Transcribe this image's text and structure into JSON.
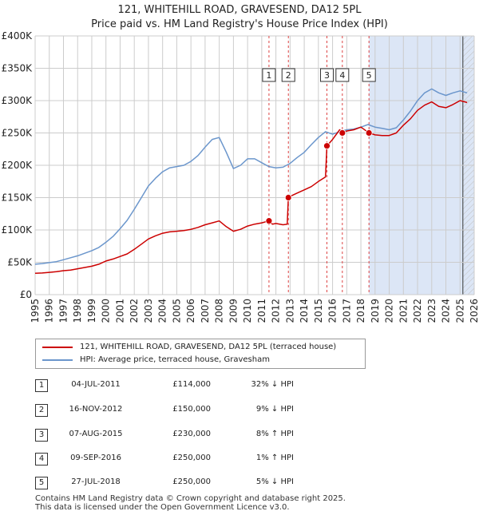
{
  "title_line1": "121, WHITEHILL ROAD, GRAVESEND, DA12 5PL",
  "title_line2": "Price paid vs. HM Land Registry's House Price Index (HPI)",
  "colors": {
    "property_line": "#cc0000",
    "hpi_line": "#6b96cc",
    "highlight_band": "#dce6f6",
    "hatch": "#c0c0c0",
    "grid": "#cccccc",
    "marker_line": "#dd4444"
  },
  "chart_data": {
    "type": "line",
    "title": "Price paid vs. HM Land Registry's House Price Index (HPI)",
    "xlabel": "",
    "ylabel": "",
    "xlim": [
      1995.0,
      2026.0
    ],
    "ylim": [
      0,
      400000
    ],
    "y_ticks": [
      0,
      50000,
      100000,
      150000,
      200000,
      250000,
      300000,
      350000,
      400000
    ],
    "y_tick_labels": [
      "£0",
      "£50K",
      "£100K",
      "£150K",
      "£200K",
      "£250K",
      "£300K",
      "£350K",
      "£400K"
    ],
    "x_ticks": [
      1995,
      1996,
      1997,
      1998,
      1999,
      2000,
      2001,
      2002,
      2003,
      2004,
      2005,
      2006,
      2007,
      2008,
      2009,
      2010,
      2011,
      2012,
      2013,
      2014,
      2015,
      2016,
      2017,
      2018,
      2019,
      2020,
      2021,
      2022,
      2023,
      2024,
      2025,
      2026
    ],
    "highlight_period": [
      2018.57,
      2026.0
    ],
    "forecast_start": 2025.2,
    "series": [
      {
        "name": "121, WHITEHILL ROAD, GRAVESEND, DA12 5PL (terraced house)",
        "color": "#cc0000",
        "x": [
          1995.0,
          1995.5,
          1996.0,
          1996.5,
          1997.0,
          1997.5,
          1998.0,
          1998.5,
          1999.0,
          1999.5,
          2000.0,
          2000.5,
          2001.0,
          2001.5,
          2002.0,
          2002.5,
          2003.0,
          2003.5,
          2004.0,
          2004.5,
          2005.0,
          2005.5,
          2006.0,
          2006.5,
          2007.0,
          2007.5,
          2008.0,
          2008.5,
          2009.0,
          2009.5,
          2010.0,
          2010.5,
          2011.0,
          2011.5,
          2011.75,
          2012.0,
          2012.5,
          2012.8,
          2012.88,
          2013.0,
          2013.5,
          2014.0,
          2014.5,
          2015.0,
          2015.5,
          2015.6,
          2016.0,
          2016.5,
          2016.7,
          2017.0,
          2017.5,
          2018.0,
          2018.57,
          2019.0,
          2019.5,
          2020.0,
          2020.5,
          2021.0,
          2021.5,
          2022.0,
          2022.5,
          2023.0,
          2023.5,
          2024.0,
          2024.5,
          2025.0,
          2025.5
        ],
        "values": [
          33000,
          33500,
          34500,
          35500,
          37000,
          38000,
          40000,
          42000,
          44000,
          47000,
          52000,
          55000,
          59000,
          63000,
          70000,
          78000,
          86000,
          91000,
          95000,
          97000,
          98000,
          99000,
          101000,
          104000,
          108000,
          111000,
          114000,
          105000,
          98000,
          101000,
          106000,
          109000,
          111000,
          114000,
          109000,
          110000,
          108000,
          109000,
          150000,
          152000,
          157000,
          162000,
          167000,
          175000,
          182000,
          230000,
          240000,
          255000,
          250000,
          253000,
          255000,
          259000,
          250000,
          247000,
          246000,
          246000,
          250000,
          262000,
          272000,
          285000,
          293000,
          298000,
          291000,
          289000,
          294000,
          300000,
          297000
        ]
      },
      {
        "name": "HPI: Average price, terraced house, Gravesham",
        "color": "#6b96cc",
        "x": [
          1995.0,
          1995.5,
          1996.0,
          1996.5,
          1997.0,
          1997.5,
          1998.0,
          1998.5,
          1999.0,
          1999.5,
          2000.0,
          2000.5,
          2001.0,
          2001.5,
          2002.0,
          2002.5,
          2003.0,
          2003.5,
          2004.0,
          2004.5,
          2005.0,
          2005.5,
          2006.0,
          2006.5,
          2007.0,
          2007.5,
          2008.0,
          2008.5,
          2009.0,
          2009.5,
          2010.0,
          2010.5,
          2011.0,
          2011.5,
          2012.0,
          2012.5,
          2013.0,
          2013.5,
          2014.0,
          2014.5,
          2015.0,
          2015.5,
          2016.0,
          2016.5,
          2017.0,
          2017.5,
          2018.0,
          2018.5,
          2019.0,
          2019.5,
          2020.0,
          2020.5,
          2021.0,
          2021.5,
          2022.0,
          2022.5,
          2023.0,
          2023.5,
          2024.0,
          2024.5,
          2025.0,
          2025.5
        ],
        "values": [
          47000,
          48000,
          49500,
          51000,
          54000,
          57000,
          60000,
          64000,
          68000,
          73000,
          81000,
          90000,
          102000,
          115000,
          132000,
          150000,
          168000,
          180000,
          190000,
          196000,
          198000,
          200000,
          206000,
          215000,
          228000,
          240000,
          243000,
          220000,
          195000,
          200000,
          210000,
          210000,
          204000,
          198000,
          196000,
          197000,
          203000,
          212000,
          220000,
          232000,
          243000,
          252000,
          248000,
          252000,
          255000,
          256000,
          259000,
          263000,
          259000,
          257000,
          255000,
          258000,
          270000,
          284000,
          300000,
          312000,
          318000,
          312000,
          308000,
          312000,
          315000,
          312000
        ]
      }
    ],
    "markers": [
      {
        "label": "1",
        "x": 2011.51,
        "price": 114000
      },
      {
        "label": "2",
        "x": 2012.88,
        "price": 150000
      },
      {
        "label": "3",
        "x": 2015.6,
        "price": 230000
      },
      {
        "label": "4",
        "x": 2016.69,
        "price": 250000
      },
      {
        "label": "5",
        "x": 2018.57,
        "price": 250000
      }
    ]
  },
  "legend": {
    "property": "121, WHITEHILL ROAD, GRAVESEND, DA12 5PL (terraced house)",
    "hpi": "HPI: Average price, terraced house, Gravesham"
  },
  "transactions": [
    {
      "num": "1",
      "date": "04-JUL-2011",
      "price": "£114,000",
      "hpi": "32% ↓ HPI"
    },
    {
      "num": "2",
      "date": "16-NOV-2012",
      "price": "£150,000",
      "hpi": "9% ↓ HPI"
    },
    {
      "num": "3",
      "date": "07-AUG-2015",
      "price": "£230,000",
      "hpi": "8% ↑ HPI"
    },
    {
      "num": "4",
      "date": "09-SEP-2016",
      "price": "£250,000",
      "hpi": "1% ↑ HPI"
    },
    {
      "num": "5",
      "date": "27-JUL-2018",
      "price": "£250,000",
      "hpi": "5% ↓ HPI"
    }
  ],
  "footer": {
    "line1": "Contains HM Land Registry data © Crown copyright and database right 2025.",
    "line2": "This data is licensed under the Open Government Licence v3.0."
  }
}
